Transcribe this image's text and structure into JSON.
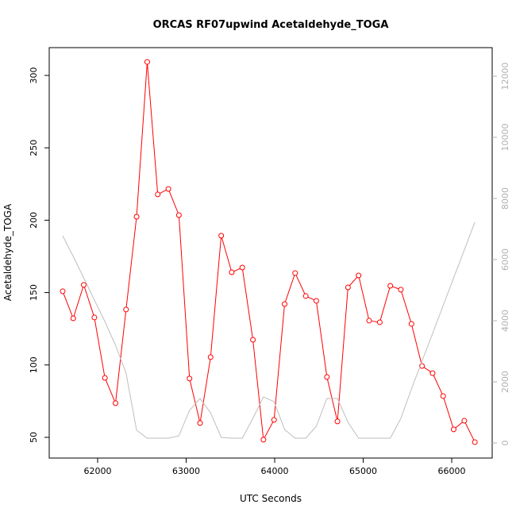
{
  "chart_data": {
    "type": "line",
    "title": "ORCAS RF07upwind Acetaldehyde_TOGA",
    "x_label": "UTC Seconds",
    "y_label": "Acetaldehyde_TOGA",
    "x": [
      61605,
      61724,
      61843,
      61963,
      62082,
      62202,
      62321,
      62440,
      62560,
      62679,
      62799,
      62918,
      63038,
      63157,
      63276,
      63396,
      63515,
      63634,
      63754,
      63873,
      63993,
      64112,
      64231,
      64351,
      64470,
      64590,
      64709,
      64828,
      64948,
      65067,
      65187,
      65306,
      65425,
      65545,
      65664,
      65784,
      65903,
      66022,
      66142,
      66261
    ],
    "series": [
      {
        "color": "#ff0000",
        "marker": "circle",
        "values": [
          150.9,
          132.2,
          155.3,
          132.8,
          91.1,
          73.6,
          138.3,
          202.4,
          309.3,
          217.8,
          221.6,
          203.5,
          90.6,
          59.9,
          105.4,
          189.3,
          164.0,
          167.3,
          117.4,
          48.4,
          62.1,
          142.1,
          163.5,
          147.6,
          144.3,
          91.7,
          61.0,
          153.6,
          161.8,
          130.6,
          129.5,
          154.7,
          152.0,
          128.4,
          99.3,
          94.3,
          78.5,
          55.5,
          61.5,
          46.7
        ]
      },
      {
        "color": "#bebebe",
        "axis": "y2",
        "values": [
          6779,
          6104,
          5403,
          4675,
          3974,
          3195,
          2286,
          416,
          156,
          156,
          156,
          234,
          1065,
          1455,
          987,
          182,
          156,
          156,
          805,
          1506,
          1351,
          442,
          156,
          156,
          545,
          1455,
          1455,
          675,
          156,
          156,
          156,
          156,
          805,
          1766,
          2675,
          3584,
          4494,
          5403,
          6312,
          7221
        ]
      }
    ],
    "xlim": [
      61453,
      66457
    ],
    "xticks": [
      62000,
      63000,
      64000,
      65000,
      66000
    ],
    "ylim": [
      35.7,
      319.2
    ],
    "yticks": [
      50,
      100,
      150,
      200,
      250,
      300
    ],
    "y2lim": [
      -494,
      12935
    ],
    "y2ticks": [
      0,
      2000,
      4000,
      6000,
      8000,
      10000,
      12000
    ],
    "y2_color": "#b0b0b0"
  }
}
